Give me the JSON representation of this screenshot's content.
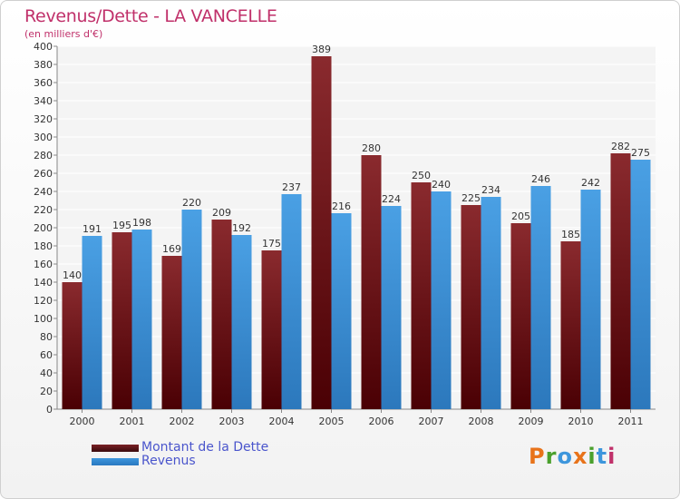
{
  "header": {
    "title": "Revenus/Dette - LA VANCELLE",
    "subtitle": "(en milliers d'€)"
  },
  "colors": {
    "dette": "#7a2025",
    "revenus": "#3d96dc",
    "title": "#c0306a",
    "legend_text": "#4a55cc"
  },
  "chart_data": {
    "type": "bar",
    "title": "Revenus/Dette - LA VANCELLE",
    "subtitle": "(en milliers d'€)",
    "categories": [
      "2000",
      "2001",
      "2002",
      "2003",
      "2004",
      "2005",
      "2006",
      "2007",
      "2008",
      "2009",
      "2010",
      "2011"
    ],
    "series": [
      {
        "name": "Montant de la Dette",
        "color": "#7a2025",
        "values": [
          140,
          195,
          169,
          209,
          175,
          389,
          280,
          250,
          225,
          205,
          185,
          282
        ]
      },
      {
        "name": "Revenus",
        "color": "#3d96dc",
        "values": [
          191,
          198,
          220,
          192,
          237,
          216,
          224,
          240,
          234,
          246,
          242,
          275
        ]
      }
    ],
    "ylim": [
      0,
      400
    ],
    "ytick_step": 20,
    "grid": true,
    "legend": "bottom-left"
  },
  "legend": {
    "items": [
      {
        "label": "Montant de la Dette",
        "color": "#7a2025"
      },
      {
        "label": "Revenus",
        "color": "#3d96dc"
      }
    ]
  },
  "logo": {
    "letters": [
      "P",
      "r",
      "o",
      "x",
      "i",
      "t",
      "i"
    ],
    "colors": [
      "#e8731a",
      "#4aa02c",
      "#3d96dc",
      "#e8731a",
      "#4aa02c",
      "#3d96dc",
      "#c0306a"
    ]
  }
}
